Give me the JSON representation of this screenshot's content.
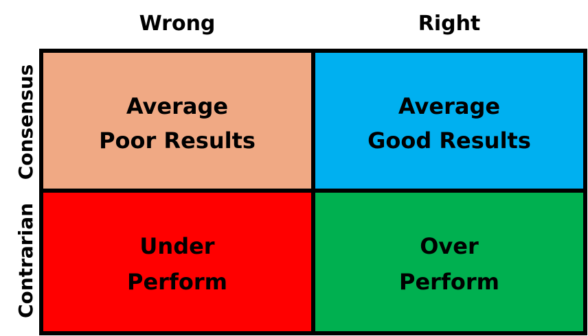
{
  "columns": [
    "Wrong",
    "Right"
  ],
  "rows": [
    "Consensus",
    "Contrarian"
  ],
  "cells": [
    [
      [
        "Average",
        "Poor Results"
      ],
      [
        "Average",
        "Good Results"
      ]
    ],
    [
      [
        "Under",
        "Perform"
      ],
      [
        "Over",
        "Perform"
      ]
    ]
  ]
}
